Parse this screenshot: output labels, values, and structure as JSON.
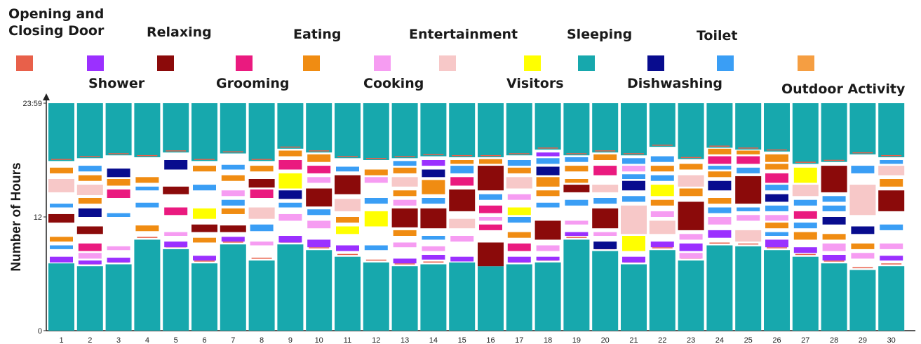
{
  "chart_data": {
    "type": "bar",
    "subtype": "stacked-timeline",
    "ylabel": "Number of Hours",
    "y_tick_labels": [
      "0",
      "12",
      "23:59"
    ],
    "ylim": [
      0,
      24
    ],
    "days": [
      "1",
      "2",
      "3",
      "4",
      "5",
      "6",
      "7",
      "8",
      "9",
      "10",
      "11",
      "12",
      "13",
      "14",
      "15",
      "16",
      "17",
      "18",
      "19",
      "20",
      "21",
      "22",
      "23",
      "24",
      "25",
      "26",
      "27",
      "28",
      "29",
      "30"
    ],
    "activities": [
      {
        "name": "Opening and Closing Door",
        "color": "#e8604a"
      },
      {
        "name": "Shower",
        "color": "#9b30ff"
      },
      {
        "name": "Relaxing",
        "color": "#8b0a0a"
      },
      {
        "name": "Grooming",
        "color": "#ea1a7f"
      },
      {
        "name": "Eating",
        "color": "#f08c12"
      },
      {
        "name": "Cooking",
        "color": "#f69cf2"
      },
      {
        "name": "Entertainment",
        "color": "#f7c8c8"
      },
      {
        "name": "Visitors",
        "color": "#ffff00"
      },
      {
        "name": "Sleeping",
        "color": "#17a8ad"
      },
      {
        "name": "Dishwashing",
        "color": "#080c8e"
      },
      {
        "name": "Toilet",
        "color": "#3a9ef5"
      },
      {
        "name": "Outdoor Activity",
        "color": "#f59e42"
      }
    ],
    "sleep_morning_end_hours": [
      7.1,
      6.8,
      7.0,
      9.6,
      8.6,
      7.1,
      9.1,
      7.4,
      9.1,
      8.5,
      7.8,
      7.2,
      6.8,
      7.0,
      7.2,
      6.8,
      7.0,
      7.2,
      9.6,
      8.4,
      7.0,
      8.5,
      7.4,
      9.0,
      8.9,
      8.5,
      7.8,
      7.1,
      6.4,
      6.8
    ],
    "sleep_evening_start_hours": [
      17.9,
      18.2,
      18.5,
      18.3,
      18.8,
      17.9,
      18.7,
      17.9,
      19.2,
      18.8,
      18.2,
      18.0,
      18.2,
      18.4,
      18.3,
      18.3,
      18.5,
      19.1,
      18.5,
      18.8,
      18.5,
      19.4,
      18.1,
      19.3,
      19.1,
      18.9,
      17.6,
      17.8,
      18.6,
      18.3
    ],
    "events": [
      [
        [
          7.2,
          7.8,
          "Shower"
        ],
        [
          8.6,
          9.0,
          "Toilet"
        ],
        [
          9.4,
          9.9,
          "Eating"
        ],
        [
          11.4,
          12.3,
          "Relaxing"
        ],
        [
          13.0,
          13.4,
          "Toilet"
        ],
        [
          14.6,
          16.0,
          "Entertainment"
        ],
        [
          16.6,
          17.2,
          "Eating"
        ]
      ],
      [
        [
          7.0,
          7.4,
          "Shower"
        ],
        [
          7.6,
          8.2,
          "Cooking"
        ],
        [
          8.4,
          9.2,
          "Grooming"
        ],
        [
          10.2,
          11.0,
          "Relaxing"
        ],
        [
          12.0,
          12.9,
          "Dishwashing"
        ],
        [
          13.4,
          14.0,
          "Eating"
        ],
        [
          14.3,
          15.4,
          "Entertainment"
        ],
        [
          15.8,
          16.4,
          "Eating"
        ],
        [
          16.8,
          17.4,
          "Toilet"
        ]
      ],
      [
        [
          7.2,
          7.7,
          "Shower"
        ],
        [
          8.5,
          8.9,
          "Cooking"
        ],
        [
          12.0,
          12.4,
          "Toilet"
        ],
        [
          14.0,
          14.9,
          "Grooming"
        ],
        [
          15.3,
          16.0,
          "Eating"
        ],
        [
          16.2,
          17.1,
          "Dishwashing"
        ]
      ],
      [
        [
          10.5,
          11.1,
          "Eating"
        ],
        [
          13.0,
          13.5,
          "Toilet"
        ],
        [
          14.8,
          15.2,
          "Toilet"
        ],
        [
          15.6,
          16.2,
          "Eating"
        ]
      ],
      [
        [
          8.8,
          9.4,
          "Shower"
        ],
        [
          10.0,
          10.4,
          "Cooking"
        ],
        [
          12.2,
          13.0,
          "Grooming"
        ],
        [
          14.4,
          15.2,
          "Relaxing"
        ],
        [
          17.0,
          18.0,
          "Dishwashing"
        ]
      ],
      [
        [
          7.4,
          7.9,
          "Shower"
        ],
        [
          9.3,
          9.8,
          "Eating"
        ],
        [
          10.4,
          11.2,
          "Relaxing"
        ],
        [
          11.8,
          12.9,
          "Visitors"
        ],
        [
          14.8,
          15.4,
          "Toilet"
        ],
        [
          16.8,
          17.4,
          "Eating"
        ]
      ],
      [
        [
          9.4,
          9.9,
          "Shower"
        ],
        [
          10.4,
          11.1,
          "Relaxing"
        ],
        [
          12.3,
          12.9,
          "Eating"
        ],
        [
          13.2,
          13.8,
          "Toilet"
        ],
        [
          14.2,
          14.8,
          "Cooking"
        ],
        [
          15.8,
          16.4,
          "Eating"
        ],
        [
          17.0,
          17.5,
          "Toilet"
        ]
      ],
      [
        [
          9.0,
          9.4,
          "Cooking"
        ],
        [
          10.5,
          11.2,
          "Toilet"
        ],
        [
          11.8,
          13.0,
          "Entertainment"
        ],
        [
          14.0,
          14.9,
          "Grooming"
        ],
        [
          15.1,
          16.0,
          "Relaxing"
        ],
        [
          16.8,
          17.4,
          "Eating"
        ]
      ],
      [
        [
          9.3,
          10.0,
          "Shower"
        ],
        [
          11.6,
          12.3,
          "Cooking"
        ],
        [
          13.0,
          13.5,
          "Toilet"
        ],
        [
          13.9,
          14.8,
          "Dishwashing"
        ],
        [
          15.0,
          16.6,
          "Visitors"
        ],
        [
          17.0,
          18.0,
          "Grooming"
        ],
        [
          18.4,
          19.0,
          "Eating"
        ]
      ],
      [
        [
          8.8,
          9.6,
          "Shower"
        ],
        [
          10.8,
          11.6,
          "Cooking"
        ],
        [
          12.2,
          12.8,
          "Toilet"
        ],
        [
          13.1,
          15.0,
          "Relaxing"
        ],
        [
          15.6,
          16.2,
          "Cooking"
        ],
        [
          16.6,
          17.4,
          "Grooming"
        ],
        [
          17.8,
          18.6,
          "Eating"
        ]
      ],
      [
        [
          8.4,
          9.0,
          "Shower"
        ],
        [
          10.2,
          11.0,
          "Visitors"
        ],
        [
          11.4,
          12.0,
          "Eating"
        ],
        [
          12.6,
          13.9,
          "Entertainment"
        ],
        [
          14.4,
          16.4,
          "Relaxing"
        ],
        [
          16.8,
          17.3,
          "Toilet"
        ]
      ],
      [
        [
          8.5,
          9.0,
          "Toilet"
        ],
        [
          11.0,
          12.6,
          "Visitors"
        ],
        [
          13.4,
          14.0,
          "Toilet"
        ],
        [
          15.6,
          16.2,
          "Cooking"
        ],
        [
          16.4,
          17.0,
          "Eating"
        ]
      ],
      [
        [
          7.1,
          7.6,
          "Shower"
        ],
        [
          8.8,
          9.3,
          "Cooking"
        ],
        [
          10.0,
          10.6,
          "Eating"
        ],
        [
          10.9,
          12.9,
          "Relaxing"
        ],
        [
          13.2,
          13.8,
          "Cooking"
        ],
        [
          14.2,
          14.8,
          "Eating"
        ],
        [
          15.2,
          16.2,
          "Entertainment"
        ],
        [
          16.6,
          17.2,
          "Eating"
        ],
        [
          17.4,
          17.9,
          "Toilet"
        ]
      ],
      [
        [
          7.5,
          8.0,
          "Shower"
        ],
        [
          8.4,
          8.9,
          "Cooking"
        ],
        [
          9.6,
          10.0,
          "Toilet"
        ],
        [
          10.8,
          12.9,
          "Relaxing"
        ],
        [
          13.4,
          14.0,
          "Toilet"
        ],
        [
          14.4,
          15.9,
          "Eating"
        ],
        [
          16.2,
          17.0,
          "Dishwashing"
        ],
        [
          17.4,
          18.0,
          "Shower"
        ]
      ],
      [
        [
          7.3,
          7.8,
          "Shower"
        ],
        [
          9.4,
          10.0,
          "Cooking"
        ],
        [
          10.8,
          11.8,
          "Entertainment"
        ],
        [
          12.6,
          14.9,
          "Relaxing"
        ],
        [
          15.3,
          16.2,
          "Grooming"
        ],
        [
          16.6,
          17.4,
          "Toilet"
        ],
        [
          17.6,
          18.0,
          "Eating"
        ]
      ],
      [
        [
          6.8,
          9.3,
          "Relaxing"
        ],
        [
          10.6,
          11.2,
          "Grooming"
        ],
        [
          11.6,
          12.0,
          "Cooking"
        ],
        [
          12.4,
          13.2,
          "Grooming"
        ],
        [
          13.8,
          14.4,
          "Toilet"
        ],
        [
          14.8,
          17.4,
          "Relaxing"
        ],
        [
          17.6,
          18.1,
          "Eating"
        ]
      ],
      [
        [
          7.2,
          7.8,
          "Shower"
        ],
        [
          8.4,
          9.2,
          "Grooming"
        ],
        [
          9.8,
          10.4,
          "Eating"
        ],
        [
          11.4,
          12.0,
          "Toilet"
        ],
        [
          12.2,
          13.0,
          "Visitors"
        ],
        [
          13.8,
          14.4,
          "Cooking"
        ],
        [
          15.0,
          16.2,
          "Entertainment"
        ],
        [
          16.6,
          17.2,
          "Eating"
        ],
        [
          17.4,
          18.0,
          "Toilet"
        ]
      ],
      [
        [
          7.4,
          7.8,
          "Shower"
        ],
        [
          8.4,
          9.0,
          "Cooking"
        ],
        [
          9.6,
          11.6,
          "Relaxing"
        ],
        [
          13.0,
          13.5,
          "Toilet"
        ],
        [
          14.2,
          14.8,
          "Eating"
        ],
        [
          15.2,
          16.2,
          "Eating"
        ],
        [
          16.4,
          17.3,
          "Dishwashing"
        ],
        [
          17.6,
          18.2,
          "Toilet"
        ],
        [
          18.4,
          18.8,
          "Shower"
        ]
      ],
      [
        [
          10.0,
          10.4,
          "Shower"
        ],
        [
          11.2,
          11.6,
          "Cooking"
        ],
        [
          13.2,
          13.8,
          "Toilet"
        ],
        [
          14.6,
          15.4,
          "Relaxing"
        ],
        [
          15.6,
          16.0,
          "Eating"
        ],
        [
          16.8,
          17.4,
          "Eating"
        ],
        [
          17.8,
          18.3,
          "Toilet"
        ]
      ],
      [
        [
          8.6,
          9.4,
          "Dishwashing"
        ],
        [
          10.0,
          10.4,
          "Cooking"
        ],
        [
          10.8,
          12.9,
          "Relaxing"
        ],
        [
          13.4,
          14.0,
          "Toilet"
        ],
        [
          14.6,
          15.4,
          "Entertainment"
        ],
        [
          16.4,
          17.4,
          "Grooming"
        ],
        [
          18.0,
          18.6,
          "Eating"
        ]
      ],
      [
        [
          7.2,
          7.8,
          "Shower"
        ],
        [
          8.4,
          10.0,
          "Visitors"
        ],
        [
          10.2,
          13.2,
          "Entertainment"
        ],
        [
          13.6,
          14.2,
          "Toilet"
        ],
        [
          14.8,
          15.8,
          "Dishwashing"
        ],
        [
          16.0,
          16.5,
          "Toilet"
        ],
        [
          16.8,
          17.4,
          "Cooking"
        ],
        [
          17.6,
          18.2,
          "Toilet"
        ]
      ],
      [
        [
          8.8,
          9.4,
          "Shower"
        ],
        [
          10.2,
          11.6,
          "Entertainment"
        ],
        [
          12.0,
          12.6,
          "Cooking"
        ],
        [
          13.2,
          13.8,
          "Eating"
        ],
        [
          14.2,
          15.4,
          "Visitors"
        ],
        [
          15.8,
          16.4,
          "Toilet"
        ],
        [
          16.8,
          17.4,
          "Eating"
        ],
        [
          17.8,
          18.4,
          "Toilet"
        ]
      ],
      [
        [
          7.6,
          8.2,
          "Cooking"
        ],
        [
          8.4,
          9.2,
          "Shower"
        ],
        [
          9.6,
          10.2,
          "Cooking"
        ],
        [
          10.6,
          13.6,
          "Relaxing"
        ],
        [
          14.2,
          15.0,
          "Eating"
        ],
        [
          15.2,
          16.4,
          "Entertainment"
        ],
        [
          17.0,
          17.6,
          "Eating"
        ]
      ],
      [
        [
          9.8,
          10.6,
          "Shower"
        ],
        [
          11.2,
          12.0,
          "Cooking"
        ],
        [
          12.4,
          13.0,
          "Toilet"
        ],
        [
          13.4,
          14.0,
          "Eating"
        ],
        [
          14.8,
          15.8,
          "Dishwashing"
        ],
        [
          16.2,
          16.8,
          "Eating"
        ],
        [
          17.0,
          17.4,
          "Toilet"
        ],
        [
          17.6,
          18.4,
          "Grooming"
        ],
        [
          18.6,
          19.2,
          "Eating"
        ]
      ],
      [
        [
          9.4,
          10.6,
          "Entertainment"
        ],
        [
          11.6,
          12.2,
          "Cooking"
        ],
        [
          12.6,
          13.0,
          "Toilet"
        ],
        [
          13.4,
          16.3,
          "Relaxing"
        ],
        [
          16.6,
          17.2,
          "Toilet"
        ],
        [
          17.6,
          18.4,
          "Grooming"
        ],
        [
          18.6,
          19.0,
          "Eating"
        ]
      ],
      [
        [
          8.8,
          9.6,
          "Shower"
        ],
        [
          10.0,
          10.4,
          "Toilet"
        ],
        [
          10.8,
          11.4,
          "Eating"
        ],
        [
          11.6,
          12.2,
          "Cooking"
        ],
        [
          12.6,
          13.2,
          "Toilet"
        ],
        [
          13.6,
          14.4,
          "Dishwashing"
        ],
        [
          14.8,
          15.4,
          "Toilet"
        ],
        [
          15.6,
          16.6,
          "Grooming"
        ],
        [
          17.0,
          17.6,
          "Eating"
        ],
        [
          17.8,
          18.6,
          "Eating"
        ]
      ],
      [
        [
          8.2,
          8.8,
          "Shower"
        ],
        [
          9.6,
          10.4,
          "Eating"
        ],
        [
          10.8,
          11.4,
          "Toilet"
        ],
        [
          11.8,
          12.6,
          "Grooming"
        ],
        [
          13.2,
          13.8,
          "Toilet"
        ],
        [
          14.2,
          15.4,
          "Entertainment"
        ],
        [
          15.6,
          17.2,
          "Visitors"
        ]
      ],
      [
        [
          7.4,
          8.0,
          "Shower"
        ],
        [
          8.4,
          9.2,
          "Cooking"
        ],
        [
          9.6,
          10.2,
          "Eating"
        ],
        [
          11.2,
          12.0,
          "Dishwashing"
        ],
        [
          12.6,
          13.2,
          "Toilet"
        ],
        [
          13.6,
          14.2,
          "Toilet"
        ],
        [
          14.6,
          17.4,
          "Relaxing"
        ]
      ],
      [
        [
          7.6,
          8.2,
          "Cooking"
        ],
        [
          8.6,
          9.2,
          "Eating"
        ],
        [
          10.2,
          11.0,
          "Dishwashing"
        ],
        [
          12.2,
          15.4,
          "Entertainment"
        ],
        [
          16.6,
          17.4,
          "Toilet"
        ]
      ],
      [
        [
          7.4,
          7.9,
          "Shower"
        ],
        [
          8.6,
          9.2,
          "Cooking"
        ],
        [
          10.6,
          11.2,
          "Toilet"
        ],
        [
          12.6,
          14.8,
          "Relaxing"
        ],
        [
          15.2,
          16.0,
          "Eating"
        ],
        [
          16.4,
          17.4,
          "Entertainment"
        ],
        [
          17.6,
          18.0,
          "Toilet"
        ]
      ]
    ]
  }
}
